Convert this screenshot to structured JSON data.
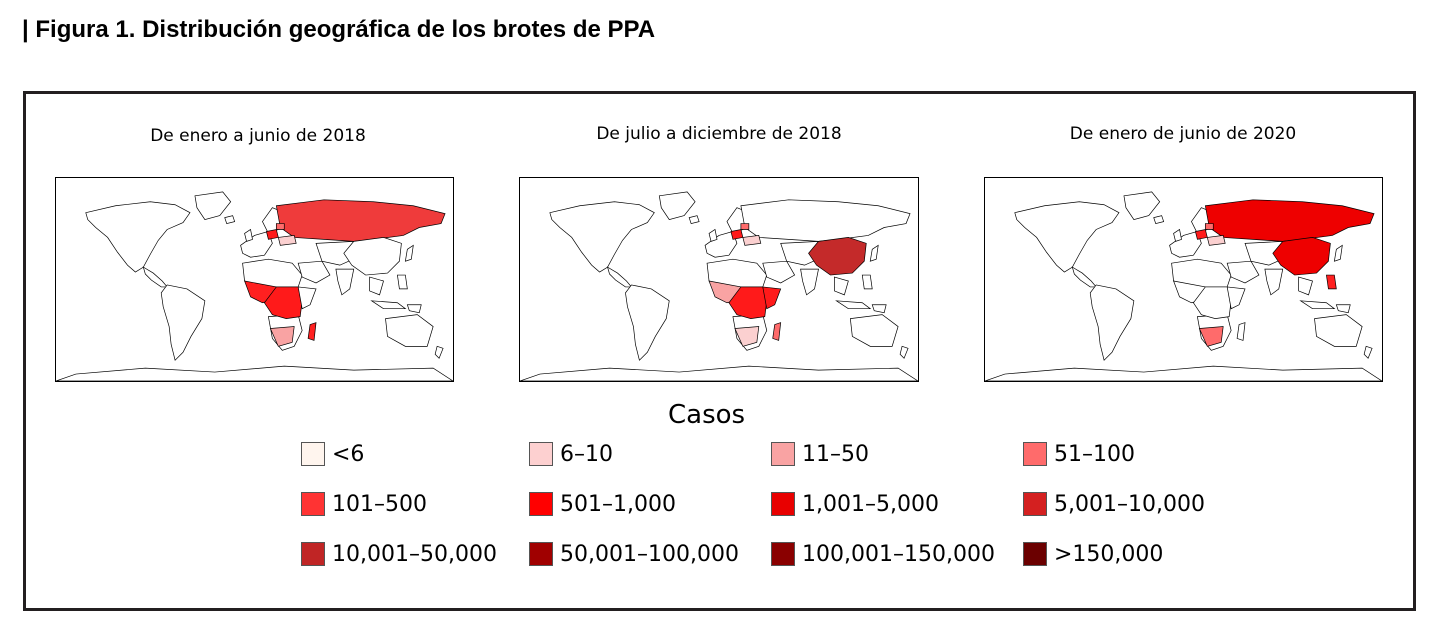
{
  "figure_title": "| Figura 1. Distribución geográfica de los brotes de PPA",
  "panels": [
    {
      "title": "De enero a junio de 2018",
      "regions": {
        "russia": "#ef3b3b",
        "poland": "#ff1a1a",
        "baltics": "#ff6b6b",
        "ukraine": "#fbd0d0",
        "china": "#ffffff",
        "west_africa": "#ff2020",
        "central_africa": "#ff1a1a",
        "south_africa": "#f9a3a3",
        "madagascar": "#ff2020",
        "east_africa": "#ffffff",
        "philippines": "#ffffff"
      }
    },
    {
      "title": "De julio a diciembre de 2018",
      "regions": {
        "russia": "#ffffff",
        "poland": "#ff1a1a",
        "baltics": "#ff6b6b",
        "ukraine": "#fbd0d0",
        "china": "#c42a2a",
        "west_africa": "#f9a3a3",
        "central_africa": "#ff1a1a",
        "south_africa": "#fbd0d0",
        "madagascar": "#ff6b6b",
        "east_africa": "#ff1a1a",
        "philippines": "#ffffff"
      }
    },
    {
      "title": "De enero de junio de 2020",
      "regions": {
        "russia": "#ee0000",
        "poland": "#ff1a1a",
        "baltics": "#ff6b6b",
        "ukraine": "#fbd0d0",
        "china": "#ee0000",
        "west_africa": "#ffffff",
        "central_africa": "#ffffff",
        "south_africa": "#ff6b6b",
        "madagascar": "#ffffff",
        "east_africa": "#ffffff",
        "philippines": "#ff2020"
      }
    }
  ],
  "legend": {
    "title": "Casos",
    "items": [
      {
        "label": "<6",
        "color": "#fff5ee"
      },
      {
        "label": "6–10",
        "color": "#fdd0d0"
      },
      {
        "label": "11–50",
        "color": "#f9a3a3"
      },
      {
        "label": "51–100",
        "color": "#ff6b6b"
      },
      {
        "label": "101–500",
        "color": "#ff3333"
      },
      {
        "label": "501–1,000",
        "color": "#ff0000"
      },
      {
        "label": "1,001–5,000",
        "color": "#e80000"
      },
      {
        "label": "5,001–10,000",
        "color": "#d42020"
      },
      {
        "label": "10,001–50,000",
        "color": "#c02525"
      },
      {
        "label": "50,001–100,000",
        "color": "#a00000"
      },
      {
        "label": "100,001–150,000",
        "color": "#8a0000"
      },
      {
        "label": ">150,000",
        "color": "#6b0000"
      }
    ]
  }
}
